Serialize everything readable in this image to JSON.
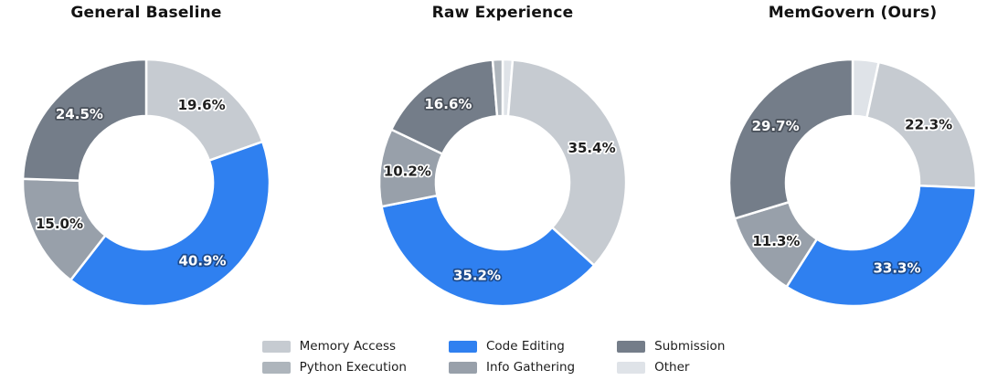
{
  "palette": {
    "Memory Access": "#c6cbd1",
    "Python Execution": "#aeb5bc",
    "Code Editing": "#2f80f0",
    "Info Gathering": "#98a0aa",
    "Submission": "#747d89",
    "Other": "#dfe3e8"
  },
  "chart_data": [
    {
      "type": "pie",
      "subtype": "donut",
      "title": "General Baseline",
      "direction": "clockwise",
      "start_angle_deg": 90,
      "slices": [
        {
          "label": "Memory Access",
          "value": 19.6,
          "pct_label": "19.6%"
        },
        {
          "label": "Code Editing",
          "value": 40.9,
          "pct_label": "40.9%"
        },
        {
          "label": "Info Gathering",
          "value": 15.0,
          "pct_label": "15.0%"
        },
        {
          "label": "Submission",
          "value": 24.5,
          "pct_label": "24.5%"
        }
      ]
    },
    {
      "type": "pie",
      "subtype": "donut",
      "title": "Raw Experience",
      "direction": "clockwise",
      "start_angle_deg": 90,
      "slices": [
        {
          "label": "Other",
          "value": 1.3,
          "pct_label": ""
        },
        {
          "label": "Memory Access",
          "value": 35.4,
          "pct_label": "35.4%"
        },
        {
          "label": "Code Editing",
          "value": 35.2,
          "pct_label": "35.2%"
        },
        {
          "label": "Info Gathering",
          "value": 10.2,
          "pct_label": "10.2%"
        },
        {
          "label": "Submission",
          "value": 16.6,
          "pct_label": "16.6%"
        },
        {
          "label": "Python Execution",
          "value": 1.3,
          "pct_label": ""
        }
      ]
    },
    {
      "type": "pie",
      "subtype": "donut",
      "title": "MemGovern (Ours)",
      "direction": "clockwise",
      "start_angle_deg": 90,
      "slices": [
        {
          "label": "Other",
          "value": 3.4,
          "pct_label": ""
        },
        {
          "label": "Memory Access",
          "value": 22.3,
          "pct_label": "22.3%"
        },
        {
          "label": "Code Editing",
          "value": 33.3,
          "pct_label": "33.3%"
        },
        {
          "label": "Info Gathering",
          "value": 11.3,
          "pct_label": "11.3%"
        },
        {
          "label": "Submission",
          "value": 29.7,
          "pct_label": "29.7%"
        }
      ]
    }
  ],
  "legend": {
    "columns": 3,
    "position": "bottom-center",
    "entries": [
      {
        "label": "Memory Access",
        "color": "#c6cbd1"
      },
      {
        "label": "Python Execution",
        "color": "#aeb5bc"
      },
      {
        "label": "Code Editing",
        "color": "#2f80f0"
      },
      {
        "label": "Info Gathering",
        "color": "#98a0aa"
      },
      {
        "label": "Submission",
        "color": "#747d89"
      },
      {
        "label": "Other",
        "color": "#dfe3e8"
      }
    ]
  }
}
